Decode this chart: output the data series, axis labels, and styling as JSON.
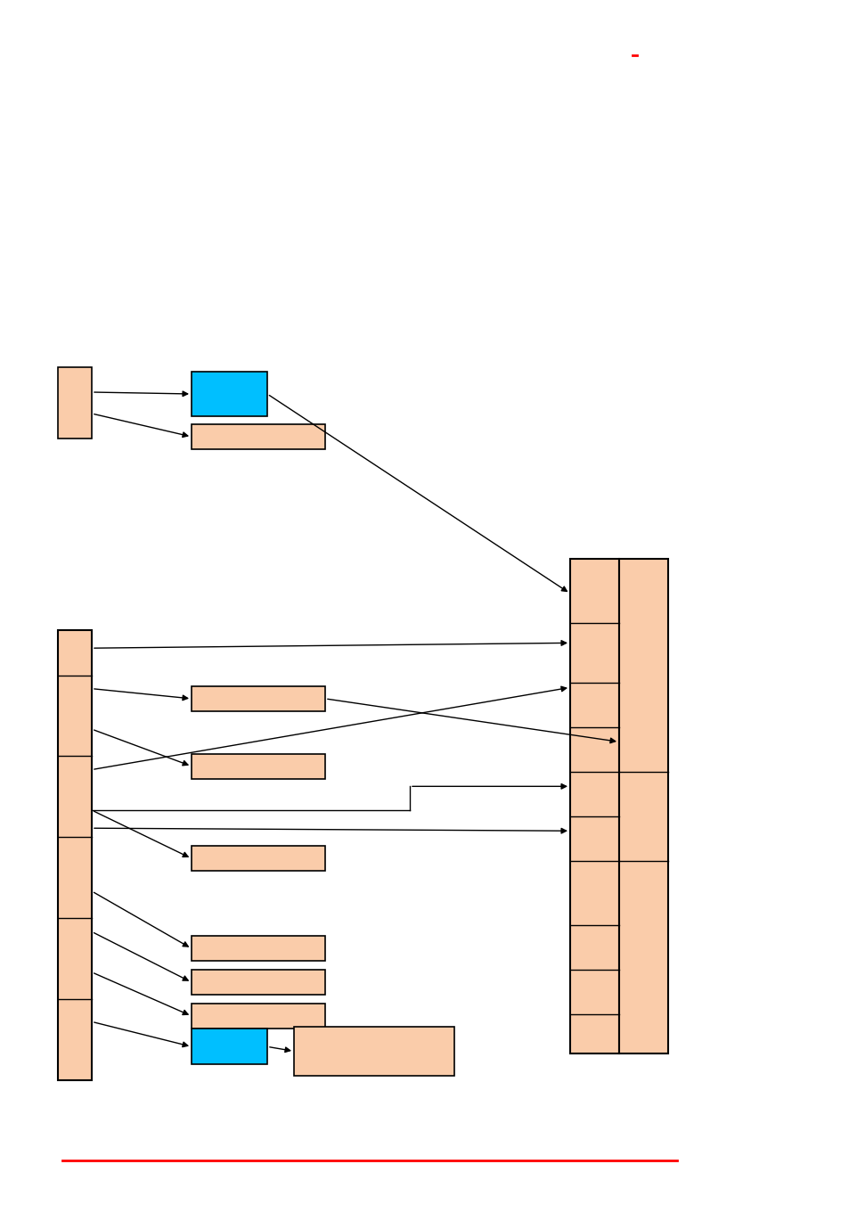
{
  "bg_color": "#ffffff",
  "orange": "#F5A96E",
  "orange_light": "#FACCAA",
  "cyan": "#00BFFF",
  "black": "#000000",
  "red": "#CC0000",
  "fig_width": 9.54,
  "fig_height": 13.52,
  "dpi": 100
}
